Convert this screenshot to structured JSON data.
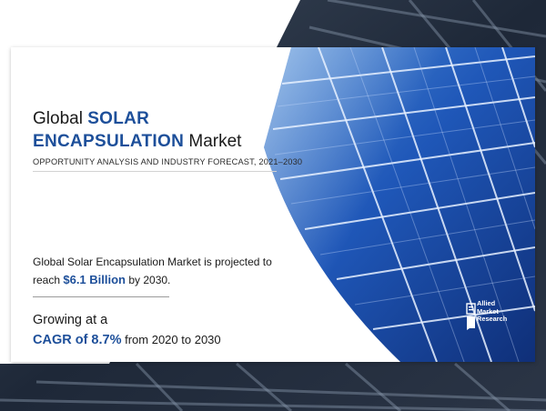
{
  "title": {
    "line1_plain": "Global ",
    "line1_highlight": "SOLAR",
    "line2_highlight": "ENCAPSULATION",
    "line2_plain": " Market"
  },
  "subtitle": "OPPORTUNITY ANALYSIS AND INDUSTRY FORECAST, 2021–2030",
  "stat_market_size": {
    "text_before": "Global Solar Encapsulation Market is projected to reach ",
    "value": "$6.1 Billion",
    "text_after": " by 2030."
  },
  "stat_cagr": {
    "line1": "Growing at a",
    "value": "CAGR of 8.7%",
    "text_after": " from 2020 to 2030"
  },
  "logo": {
    "line1": "Allied",
    "line2": "Market",
    "line3": "Research"
  },
  "colors": {
    "accent": "#1d4f9a",
    "text": "#1a1a1a",
    "panel_blue": "#1f57b8"
  }
}
